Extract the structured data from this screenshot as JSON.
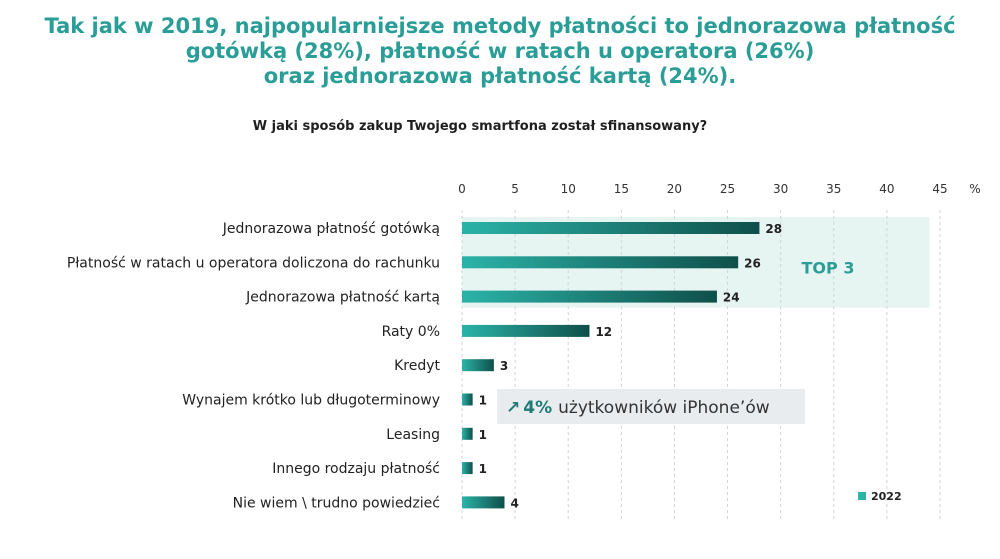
{
  "headline": {
    "line1": "Tak jak w 2019, najpopularniejsze metody płatności to jednorazowa płatność",
    "line2": "gotówką (28%), płatność w ratach u operatora (26%)",
    "line3": "oraz jednorazowa płatność kartą (24%)."
  },
  "chart_data": {
    "type": "bar",
    "orientation": "horizontal",
    "title": "W jaki sposób zakup Twojego smartfona został sfinansowany?",
    "categories": [
      "Jednorazowa płatność gotówką",
      "Płatność w ratach u operatora doliczona do rachunku",
      "Jednorazowa płatność kartą",
      "Raty 0%",
      "Kredyt",
      "Wynajem krótko lub długoterminowy",
      "Leasing",
      "Innego rodzaju płatność",
      "Nie wiem \\ trudno powiedzieć"
    ],
    "series": [
      {
        "name": "2022",
        "values": [
          28,
          26,
          24,
          12,
          3,
          1,
          1,
          1,
          4
        ]
      }
    ],
    "xlim": [
      0,
      45
    ],
    "xticks": [
      0,
      5,
      10,
      15,
      20,
      25,
      30,
      35,
      40,
      45
    ],
    "unit": "%",
    "grid": "vertical-dashed",
    "legend": "bottom-right",
    "colors": {
      "bar_start": "#2bb3a8",
      "bar_end": "#0f4f4a",
      "highlight": "#e6f4f2",
      "note_bg": "#e9ecef"
    },
    "annotations": {
      "top3": "TOP 3",
      "note_arrow": "↗",
      "note_value": "4%",
      "note_text": "użytkowników iPhone’ów"
    }
  }
}
